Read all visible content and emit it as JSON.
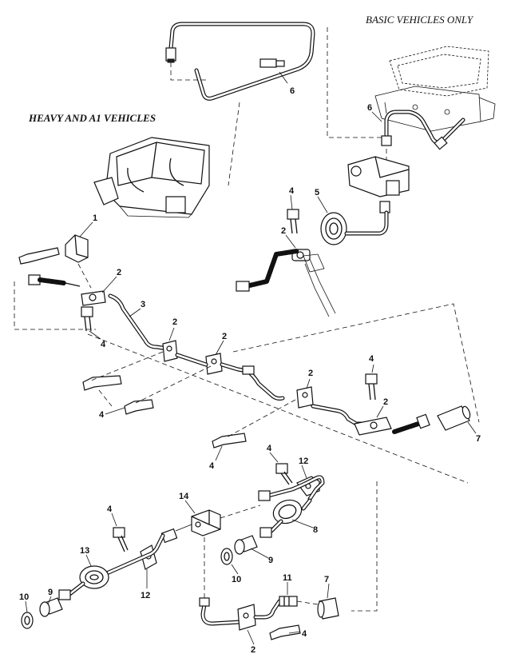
{
  "captions": {
    "basic": "BASIC VEHICLES ONLY",
    "heavy": "HEAVY AND A1 VEHICLES"
  },
  "callouts": [
    "1",
    "2",
    "3",
    "4",
    "5",
    "6",
    "7",
    "8",
    "9",
    "10",
    "11",
    "12",
    "13",
    "14"
  ]
}
